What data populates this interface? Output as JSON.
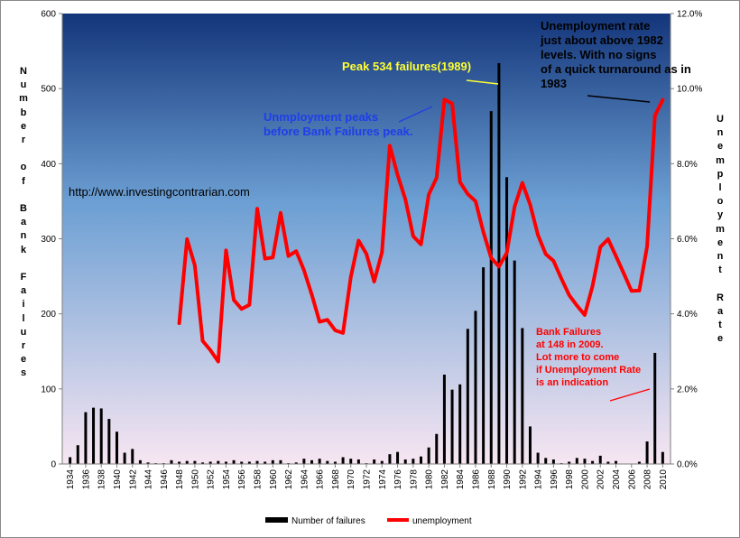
{
  "chart_data": {
    "type": "bar+line",
    "title": "",
    "y_left_label": "Number of Bank Failures",
    "y_right_label": "Unemployment Rate",
    "y_left_range": [
      0,
      600
    ],
    "y_left_ticks": [
      "0",
      "100",
      "200",
      "300",
      "400",
      "500",
      "600"
    ],
    "y_right_range": [
      0,
      12
    ],
    "y_right_ticks": [
      "0.0%",
      "2.0%",
      "4.0%",
      "6.0%",
      "8.0%",
      "10.0%",
      "12.0%"
    ],
    "x_ticks": [
      "1934",
      "1936",
      "1938",
      "1940",
      "1942",
      "1944",
      "1946",
      "1948",
      "1950",
      "1952",
      "1954",
      "1956",
      "1958",
      "1960",
      "1962",
      "1964",
      "1966",
      "1968",
      "1970",
      "1972",
      "1974",
      "1976",
      "1978",
      "1980",
      "1982",
      "1984",
      "1986",
      "1988",
      "1990",
      "1992",
      "1994",
      "1996",
      "1998",
      "2000",
      "2002",
      "2004",
      "2006",
      "2008",
      "2010"
    ],
    "years": [
      1934,
      1935,
      1936,
      1937,
      1938,
      1939,
      1940,
      1941,
      1942,
      1943,
      1944,
      1945,
      1946,
      1947,
      1948,
      1949,
      1950,
      1951,
      1952,
      1953,
      1954,
      1955,
      1956,
      1957,
      1958,
      1959,
      1960,
      1961,
      1962,
      1963,
      1964,
      1965,
      1966,
      1967,
      1968,
      1969,
      1970,
      1971,
      1972,
      1973,
      1974,
      1975,
      1976,
      1977,
      1978,
      1979,
      1980,
      1981,
      1982,
      1983,
      1984,
      1985,
      1986,
      1987,
      1988,
      1989,
      1990,
      1991,
      1992,
      1993,
      1994,
      1995,
      1996,
      1997,
      1998,
      1999,
      2000,
      2001,
      2002,
      2003,
      2004,
      2005,
      2006,
      2007,
      2008,
      2009,
      2010
    ],
    "series": [
      {
        "name": "Number of failures",
        "type": "bar",
        "color": "#000000",
        "values": [
          9,
          25,
          69,
          75,
          74,
          60,
          43,
          15,
          20,
          5,
          2,
          1,
          1,
          5,
          3,
          4,
          4,
          2,
          3,
          4,
          3,
          5,
          3,
          3,
          4,
          3,
          5,
          5,
          1,
          2,
          7,
          5,
          7,
          4,
          3,
          9,
          7,
          6,
          1,
          6,
          4,
          13,
          16,
          6,
          7,
          10,
          22,
          40,
          119,
          99,
          106,
          180,
          204,
          262,
          470,
          534,
          382,
          271,
          181,
          50,
          15,
          8,
          6,
          1,
          3,
          8,
          7,
          4,
          11,
          3,
          4,
          0,
          0,
          3,
          30,
          148,
          16
        ]
      },
      {
        "name": "unemployment",
        "type": "line",
        "color": "#ff0000",
        "x_start": 1948,
        "values": [
          3.75,
          5.99,
          5.29,
          3.28,
          3.03,
          2.73,
          5.69,
          4.37,
          4.13,
          4.24,
          6.8,
          5.47,
          5.5,
          6.69,
          5.54,
          5.67,
          5.16,
          4.51,
          3.79,
          3.84,
          3.56,
          3.49,
          4.98,
          5.95,
          5.6,
          4.86,
          5.64,
          8.48,
          7.7,
          7.05,
          6.07,
          5.85,
          7.18,
          7.62,
          9.71,
          9.6,
          7.51,
          7.19,
          7.0,
          6.18,
          5.49,
          5.26,
          5.62,
          6.85,
          7.49,
          6.91,
          6.1,
          5.59,
          5.41,
          4.94,
          4.5,
          4.22,
          3.97,
          4.74,
          5.78,
          5.99,
          5.54,
          5.08,
          4.61,
          4.62,
          5.8,
          9.28,
          9.7
        ]
      }
    ],
    "legend": {
      "position": "bottom",
      "entries": [
        {
          "label": "Number of failures",
          "color": "#000000",
          "kind": "bar"
        },
        {
          "label": "unemployment",
          "color": "#ff0000",
          "kind": "line"
        }
      ]
    },
    "annotations": {
      "url": "http://www.investingcontrarian.com",
      "unemp_peak": [
        "Unmployment peaks",
        "before Bank Failures peak."
      ],
      "peak": "Peak 534 failures(1989)",
      "top_right": [
        "Unemployment rate",
        "just about above 1982",
        "levels. With no signs",
        "of a quick turnaround as in",
        "1983"
      ],
      "bank_2009": [
        "Bank Failures",
        "at 148 in 2009.",
        "Lot more to come",
        "if Unemployment Rate",
        "is an indication"
      ]
    },
    "colors": {
      "plot_top": "#13357a",
      "plot_mid": "#6c9fd3",
      "plot_bottom": "#f7e6f2",
      "unemp_annotation": "#1f3ee8",
      "peak_annotation": "#ffff33",
      "bank_annotation": "#ff0000"
    }
  }
}
